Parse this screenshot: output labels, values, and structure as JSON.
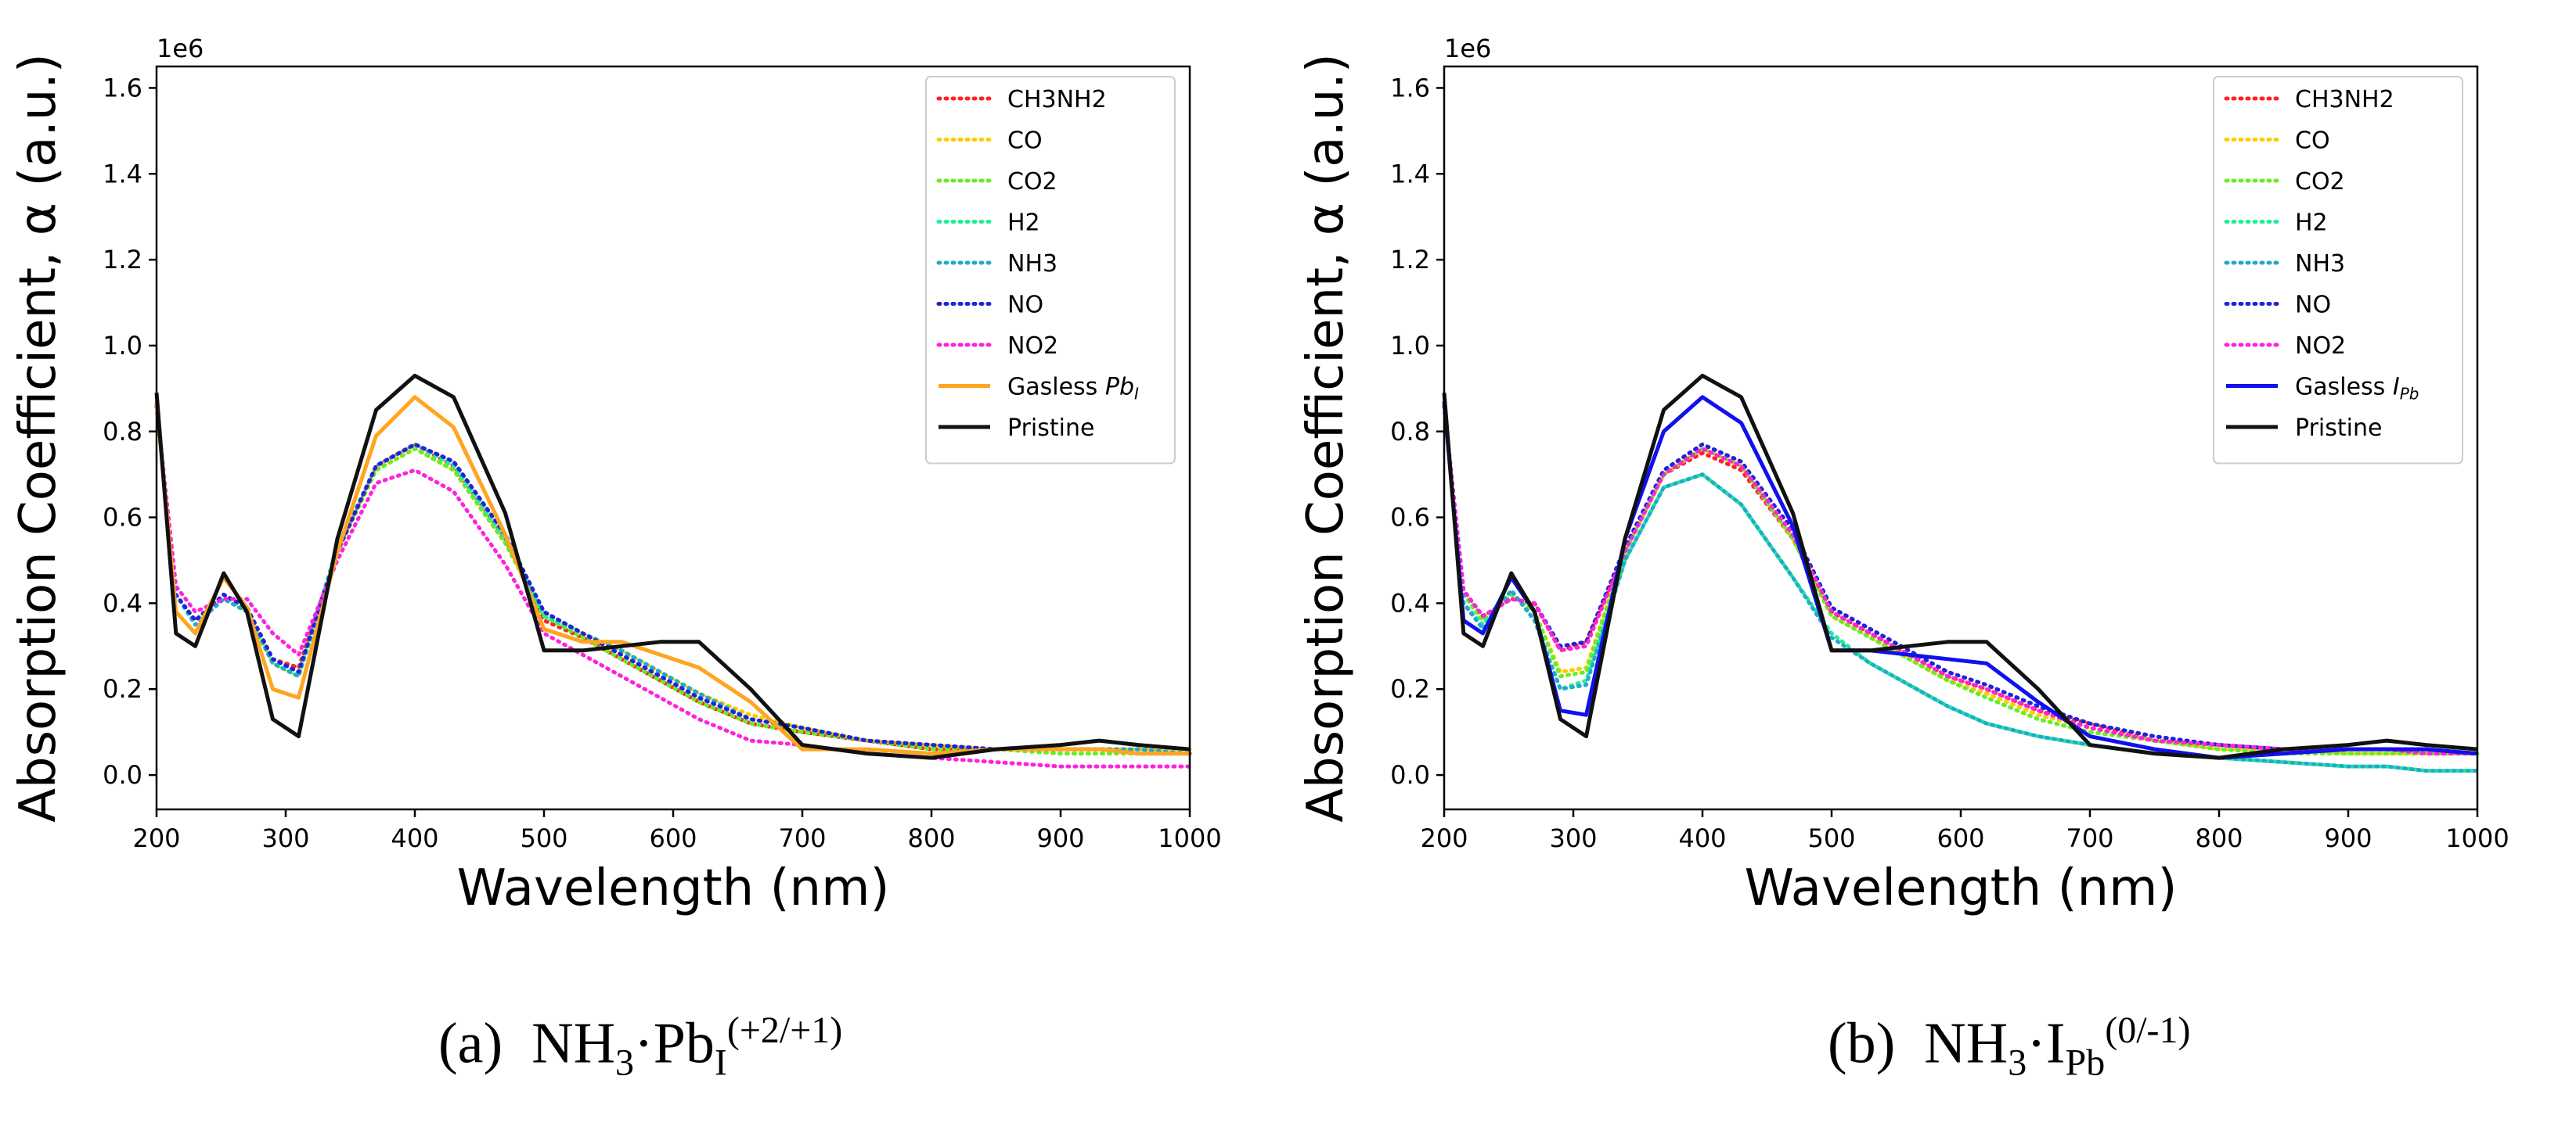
{
  "figure": {
    "panels": [
      {
        "caption": {
          "letter": "(a)",
          "prefix": "NH",
          "prefix_sub": "3",
          "dot": "·",
          "species": "Pb",
          "species_sub": "I",
          "charge": "(+2/+1)"
        }
      },
      {
        "caption": {
          "letter": "(b)",
          "prefix": "NH",
          "prefix_sub": "3",
          "dot": "·",
          "species": "I",
          "species_sub": "Pb",
          "charge": "(0/-1)"
        }
      }
    ]
  },
  "chart_data": [
    {
      "type": "line",
      "xlabel": "Wavelength (nm)",
      "ylabel": "Absorption Coefficient, α (a.u.)",
      "y_offset_label": "1e6",
      "xlim": [
        200,
        1000
      ],
      "ylim": [
        -0.08,
        1.65
      ],
      "xticks": [
        "200",
        "300",
        "400",
        "500",
        "600",
        "700",
        "800",
        "900",
        "1000"
      ],
      "yticks": [
        "0.0",
        "0.2",
        "0.4",
        "0.6",
        "0.8",
        "1.0",
        "1.2",
        "1.4",
        "1.6"
      ],
      "legend_position": "top-right",
      "x": [
        200,
        215,
        230,
        252,
        270,
        290,
        310,
        340,
        370,
        400,
        430,
        470,
        500,
        530,
        560,
        590,
        620,
        660,
        700,
        750,
        800,
        850,
        900,
        930,
        960,
        1000
      ],
      "series": [
        {
          "name": "CH3NH2",
          "color": "#ff2222",
          "style": "dotted",
          "values": [
            0.86,
            0.42,
            0.36,
            0.42,
            0.39,
            0.27,
            0.25,
            0.52,
            0.72,
            0.77,
            0.72,
            0.55,
            0.36,
            0.32,
            0.27,
            0.22,
            0.17,
            0.12,
            0.1,
            0.08,
            0.06,
            0.06,
            0.06,
            0.06,
            0.05,
            0.05
          ]
        },
        {
          "name": "CO",
          "color": "#ffcc00",
          "style": "dotted",
          "values": [
            0.86,
            0.42,
            0.36,
            0.42,
            0.39,
            0.27,
            0.24,
            0.52,
            0.71,
            0.76,
            0.71,
            0.54,
            0.37,
            0.33,
            0.29,
            0.24,
            0.19,
            0.14,
            0.11,
            0.08,
            0.07,
            0.06,
            0.06,
            0.06,
            0.06,
            0.06
          ]
        },
        {
          "name": "CO2",
          "color": "#66ee22",
          "style": "dotted",
          "values": [
            0.86,
            0.42,
            0.36,
            0.42,
            0.38,
            0.26,
            0.23,
            0.52,
            0.71,
            0.76,
            0.71,
            0.54,
            0.37,
            0.32,
            0.27,
            0.22,
            0.17,
            0.12,
            0.1,
            0.08,
            0.06,
            0.06,
            0.05,
            0.05,
            0.05,
            0.05
          ]
        },
        {
          "name": "H2",
          "color": "#22ee99",
          "style": "dotted",
          "values": [
            0.86,
            0.42,
            0.36,
            0.42,
            0.39,
            0.27,
            0.24,
            0.53,
            0.72,
            0.77,
            0.72,
            0.55,
            0.37,
            0.33,
            0.28,
            0.23,
            0.18,
            0.13,
            0.11,
            0.08,
            0.07,
            0.06,
            0.06,
            0.06,
            0.05,
            0.05
          ]
        },
        {
          "name": "NH3",
          "color": "#22aacc",
          "style": "dotted",
          "values": [
            0.86,
            0.42,
            0.35,
            0.41,
            0.38,
            0.26,
            0.23,
            0.52,
            0.72,
            0.77,
            0.73,
            0.56,
            0.38,
            0.33,
            0.29,
            0.24,
            0.19,
            0.13,
            0.11,
            0.08,
            0.07,
            0.06,
            0.06,
            0.06,
            0.06,
            0.05
          ]
        },
        {
          "name": "NO",
          "color": "#2222dd",
          "style": "dotted",
          "values": [
            0.86,
            0.42,
            0.36,
            0.42,
            0.39,
            0.27,
            0.24,
            0.52,
            0.72,
            0.77,
            0.73,
            0.56,
            0.38,
            0.33,
            0.28,
            0.23,
            0.18,
            0.13,
            0.11,
            0.08,
            0.07,
            0.06,
            0.06,
            0.06,
            0.05,
            0.05
          ]
        },
        {
          "name": "NO2",
          "color": "#ff22dd",
          "style": "dotted",
          "values": [
            0.86,
            0.44,
            0.38,
            0.41,
            0.41,
            0.33,
            0.28,
            0.5,
            0.68,
            0.71,
            0.66,
            0.49,
            0.33,
            0.28,
            0.23,
            0.18,
            0.13,
            0.08,
            0.07,
            0.05,
            0.04,
            0.03,
            0.02,
            0.02,
            0.02,
            0.02
          ]
        },
        {
          "name": "Gasless ",
          "name_suffix": "Pb",
          "name_suffix_sub": "I",
          "color": "#ffa520",
          "style": "solid",
          "values": [
            0.87,
            0.38,
            0.33,
            0.46,
            0.39,
            0.2,
            0.18,
            0.52,
            0.79,
            0.88,
            0.81,
            0.56,
            0.34,
            0.31,
            0.31,
            0.28,
            0.25,
            0.17,
            0.06,
            0.06,
            0.05,
            0.06,
            0.06,
            0.06,
            0.05,
            0.05
          ]
        },
        {
          "name": "Pristine",
          "color": "#111111",
          "style": "solid",
          "values": [
            0.89,
            0.33,
            0.3,
            0.47,
            0.38,
            0.13,
            0.09,
            0.55,
            0.85,
            0.93,
            0.88,
            0.61,
            0.29,
            0.29,
            0.3,
            0.31,
            0.31,
            0.2,
            0.07,
            0.05,
            0.04,
            0.06,
            0.07,
            0.08,
            0.07,
            0.06
          ]
        }
      ]
    },
    {
      "type": "line",
      "xlabel": "Wavelength (nm)",
      "ylabel": "Absorption Coefficient, α (a.u.)",
      "y_offset_label": "1e6",
      "xlim": [
        200,
        1000
      ],
      "ylim": [
        -0.08,
        1.65
      ],
      "xticks": [
        "200",
        "300",
        "400",
        "500",
        "600",
        "700",
        "800",
        "900",
        "1000"
      ],
      "yticks": [
        "0.0",
        "0.2",
        "0.4",
        "0.6",
        "0.8",
        "1.0",
        "1.2",
        "1.4",
        "1.6"
      ],
      "legend_position": "top-right",
      "x": [
        200,
        215,
        230,
        252,
        270,
        290,
        310,
        340,
        370,
        400,
        430,
        470,
        500,
        530,
        560,
        590,
        620,
        660,
        700,
        750,
        800,
        850,
        900,
        930,
        960,
        1000
      ],
      "series": [
        {
          "name": "CH3NH2",
          "color": "#ff2222",
          "style": "dotted",
          "values": [
            0.86,
            0.42,
            0.37,
            0.41,
            0.4,
            0.29,
            0.31,
            0.52,
            0.7,
            0.75,
            0.71,
            0.55,
            0.38,
            0.33,
            0.28,
            0.23,
            0.2,
            0.15,
            0.12,
            0.08,
            0.07,
            0.06,
            0.06,
            0.06,
            0.05,
            0.05
          ]
        },
        {
          "name": "CO",
          "color": "#ffcc00",
          "style": "dotted",
          "values": [
            0.86,
            0.42,
            0.36,
            0.42,
            0.38,
            0.24,
            0.25,
            0.52,
            0.7,
            0.76,
            0.72,
            0.55,
            0.37,
            0.32,
            0.27,
            0.22,
            0.19,
            0.14,
            0.11,
            0.08,
            0.06,
            0.06,
            0.05,
            0.05,
            0.05,
            0.05
          ]
        },
        {
          "name": "CO2",
          "color": "#66ee22",
          "style": "dotted",
          "values": [
            0.86,
            0.42,
            0.36,
            0.42,
            0.38,
            0.23,
            0.24,
            0.52,
            0.7,
            0.76,
            0.72,
            0.55,
            0.37,
            0.32,
            0.27,
            0.22,
            0.18,
            0.13,
            0.1,
            0.08,
            0.06,
            0.05,
            0.05,
            0.05,
            0.05,
            0.05
          ]
        },
        {
          "name": "H2",
          "color": "#22ee99",
          "style": "dotted",
          "values": [
            0.86,
            0.4,
            0.35,
            0.43,
            0.36,
            0.2,
            0.22,
            0.5,
            0.67,
            0.7,
            0.63,
            0.46,
            0.33,
            0.26,
            0.21,
            0.16,
            0.12,
            0.09,
            0.07,
            0.05,
            0.04,
            0.03,
            0.02,
            0.02,
            0.01,
            0.01
          ]
        },
        {
          "name": "NH3",
          "color": "#22aacc",
          "style": "dotted",
          "values": [
            0.86,
            0.4,
            0.34,
            0.43,
            0.36,
            0.2,
            0.21,
            0.5,
            0.67,
            0.7,
            0.63,
            0.46,
            0.32,
            0.26,
            0.21,
            0.16,
            0.12,
            0.09,
            0.07,
            0.05,
            0.04,
            0.03,
            0.02,
            0.02,
            0.01,
            0.01
          ]
        },
        {
          "name": "NO",
          "color": "#2222dd",
          "style": "dotted",
          "values": [
            0.86,
            0.43,
            0.37,
            0.41,
            0.4,
            0.3,
            0.31,
            0.53,
            0.71,
            0.77,
            0.73,
            0.57,
            0.39,
            0.34,
            0.29,
            0.24,
            0.21,
            0.16,
            0.12,
            0.09,
            0.07,
            0.06,
            0.06,
            0.06,
            0.06,
            0.05
          ]
        },
        {
          "name": "NO2",
          "color": "#ff22dd",
          "style": "dotted",
          "values": [
            0.86,
            0.43,
            0.37,
            0.41,
            0.4,
            0.29,
            0.3,
            0.52,
            0.7,
            0.76,
            0.72,
            0.56,
            0.38,
            0.33,
            0.28,
            0.23,
            0.2,
            0.15,
            0.11,
            0.08,
            0.07,
            0.06,
            0.06,
            0.06,
            0.05,
            0.05
          ]
        },
        {
          "name": "Gasless ",
          "name_suffix": "I",
          "name_suffix_sub": "Pb",
          "color": "#1111ee",
          "style": "solid",
          "values": [
            0.87,
            0.36,
            0.33,
            0.46,
            0.38,
            0.15,
            0.14,
            0.55,
            0.8,
            0.88,
            0.82,
            0.58,
            0.29,
            0.29,
            0.28,
            0.27,
            0.26,
            0.17,
            0.09,
            0.06,
            0.04,
            0.05,
            0.06,
            0.06,
            0.06,
            0.05
          ]
        },
        {
          "name": "Pristine",
          "color": "#111111",
          "style": "solid",
          "values": [
            0.89,
            0.33,
            0.3,
            0.47,
            0.38,
            0.13,
            0.09,
            0.55,
            0.85,
            0.93,
            0.88,
            0.61,
            0.29,
            0.29,
            0.3,
            0.31,
            0.31,
            0.2,
            0.07,
            0.05,
            0.04,
            0.06,
            0.07,
            0.08,
            0.07,
            0.06
          ]
        }
      ]
    }
  ]
}
